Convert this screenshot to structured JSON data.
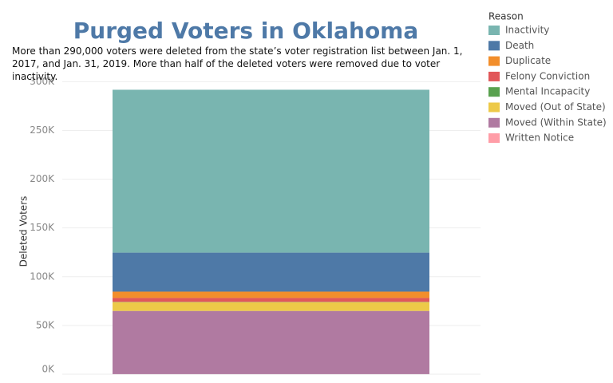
{
  "chart_data": {
    "type": "stacked-bar",
    "title": "Purged Voters in Oklahoma",
    "subtitle": "More than 290,000 voters were deleted from the state’s voter registration list between Jan. 1, 2017, and Jan. 31, 2019. More than half of the deleted voters were removed due to voter inactivity.",
    "y_label": "Deleted Voters",
    "legend_title": "Reason",
    "categories": [
      null
    ],
    "series": [
      {
        "name": "Inactivity",
        "color": "#79b5b0",
        "values": [
          167000
        ]
      },
      {
        "name": "Death",
        "color": "#4e79a7",
        "values": [
          40000
        ]
      },
      {
        "name": "Duplicate",
        "color": "#f28e2b",
        "values": [
          6500
        ]
      },
      {
        "name": "Felony Conviction",
        "color": "#e15759",
        "values": [
          4000
        ]
      },
      {
        "name": "Mental Incapacity",
        "color": "#59a14f",
        "values": [
          300
        ]
      },
      {
        "name": "Moved (Out of State)",
        "color": "#edc948",
        "values": [
          9000
        ]
      },
      {
        "name": "Moved (Within State)",
        "color": "#b07aa1",
        "values": [
          64800
        ]
      },
      {
        "name": "Written Notice",
        "color": "#ff9da7",
        "values": [
          100
        ]
      }
    ],
    "ylim": [
      0,
      306000
    ],
    "yticks": [
      {
        "value": 0,
        "label": "0K"
      },
      {
        "value": 50000,
        "label": "50K"
      },
      {
        "value": 100000,
        "label": "100K"
      },
      {
        "value": 150000,
        "label": "150K"
      },
      {
        "value": 200000,
        "label": "200K"
      },
      {
        "value": 250000,
        "label": "250K"
      },
      {
        "value": 300000,
        "label": "300K"
      }
    ],
    "grid": true
  }
}
